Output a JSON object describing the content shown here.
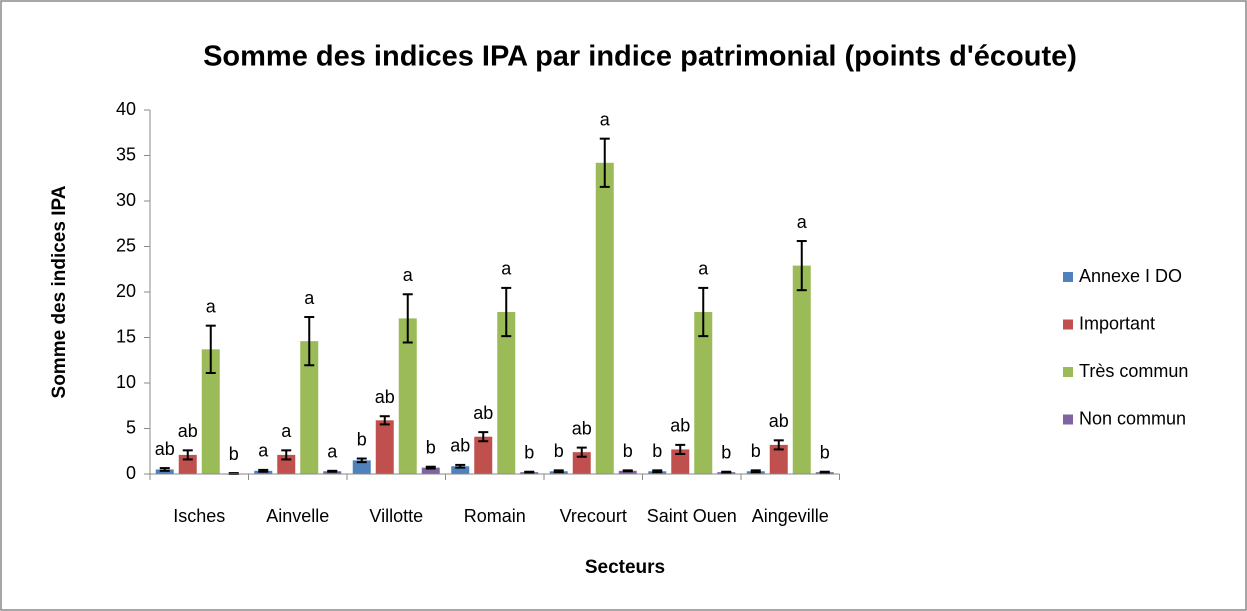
{
  "chart_data": {
    "type": "bar",
    "title": "Somme des indices IPA par indice patrimonial (points d'écoute)",
    "x_label": "Secteurs",
    "y_label": "Somme des indices IPA",
    "categories": [
      "Isches",
      "Ainvelle",
      "Villotte",
      "Romain",
      "Vrecourt",
      "Saint Ouen",
      "Aingeville"
    ],
    "series": [
      {
        "name": "Annexe I DO",
        "color": "#4f81bd",
        "values": [
          0.5,
          0.35,
          1.5,
          0.85,
          0.3,
          0.3,
          0.3
        ],
        "errors": [
          0.15,
          0.1,
          0.2,
          0.15,
          0.1,
          0.1,
          0.1
        ],
        "letters": [
          "ab",
          "a",
          "b",
          "ab",
          "b",
          "b",
          "b"
        ]
      },
      {
        "name": "Important",
        "color": "#c0504d",
        "values": [
          2.1,
          2.1,
          5.9,
          4.1,
          2.4,
          2.7,
          3.2
        ],
        "errors": [
          0.5,
          0.5,
          0.45,
          0.5,
          0.5,
          0.5,
          0.5
        ],
        "letters": [
          "ab",
          "a",
          "ab",
          "ab",
          "ab",
          "ab",
          "ab"
        ]
      },
      {
        "name": "Très commun",
        "color": "#9bbb59",
        "values": [
          13.7,
          14.6,
          17.1,
          17.8,
          34.2,
          17.8,
          22.9
        ],
        "errors": [
          2.6,
          2.65,
          2.65,
          2.65,
          2.65,
          2.65,
          2.7
        ],
        "letters": [
          "a",
          "a",
          "a",
          "a",
          "a",
          "a",
          "a"
        ]
      },
      {
        "name": "Non commun",
        "color": "#8064a2",
        "values": [
          0.05,
          0.3,
          0.7,
          0.2,
          0.35,
          0.2,
          0.2
        ],
        "errors": [
          0.05,
          0.05,
          0.1,
          0.05,
          0.05,
          0.05,
          0.05
        ],
        "letters": [
          "b",
          "a",
          "b",
          "b",
          "b",
          "b",
          "b"
        ]
      }
    ],
    "ylim": [
      0,
      40
    ],
    "yticks": [
      0,
      5,
      10,
      15,
      20,
      25,
      30,
      35,
      40
    ],
    "legend": "right"
  }
}
